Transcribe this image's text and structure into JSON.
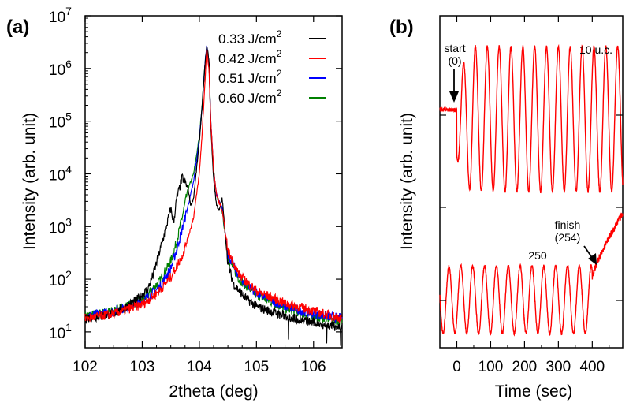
{
  "panel_a_label": "(a)",
  "panel_b_label": "(b)",
  "chart_data": [
    {
      "type": "line",
      "panel": "(a)",
      "xlabel": "2theta (deg)",
      "ylabel": "Intensity (arb. unit)",
      "xlim": [
        102,
        106.5
      ],
      "ylim": [
        5,
        10000000
      ],
      "y_scale": "log",
      "x_ticks": [
        {
          "value": 102,
          "label": "102"
        },
        {
          "value": 103,
          "label": "103"
        },
        {
          "value": 104,
          "label": "104"
        },
        {
          "value": 105,
          "label": "105"
        },
        {
          "value": 106,
          "label": "106"
        }
      ],
      "y_ticks": [
        {
          "value": 10,
          "base": "10",
          "exp": "1"
        },
        {
          "value": 100,
          "base": "10",
          "exp": "2"
        },
        {
          "value": 1000,
          "base": "10",
          "exp": "3"
        },
        {
          "value": 10000,
          "base": "10",
          "exp": "4"
        },
        {
          "value": 100000,
          "base": "10",
          "exp": "5"
        },
        {
          "value": 1000000,
          "base": "10",
          "exp": "6"
        },
        {
          "value": 10000000,
          "base": "10",
          "exp": "7"
        }
      ],
      "legend_position": "top-right",
      "series": [
        {
          "name": "0.33 J/cm",
          "name_sup": "2",
          "color": "#000000",
          "x": [
            102.0,
            102.5,
            102.9,
            103.1,
            103.2,
            103.3,
            103.4,
            103.5,
            103.55,
            103.6,
            103.7,
            103.8,
            103.85,
            103.9,
            104.0,
            104.05,
            104.1,
            104.13,
            104.17,
            104.2,
            104.25,
            104.3,
            104.35,
            104.4,
            104.45,
            104.5,
            104.6,
            104.8,
            105.0,
            105.5,
            106.0,
            106.5
          ],
          "y": [
            18,
            22,
            40,
            65,
            130,
            320,
            800,
            2200,
            1200,
            3200,
            8500,
            5500,
            2500,
            3500,
            40000,
            200000,
            1200000,
            2600000,
            1500000,
            80000,
            8000,
            2600,
            2000,
            3500,
            800,
            200,
            80,
            45,
            30,
            20,
            15,
            12
          ]
        },
        {
          "name": "0.42 J/cm",
          "name_sup": "2",
          "color": "#ff0000",
          "x": [
            102.0,
            102.5,
            103.0,
            103.3,
            103.5,
            103.7,
            103.8,
            103.9,
            104.0,
            104.05,
            104.1,
            104.13,
            104.17,
            104.2,
            104.25,
            104.3,
            104.4,
            104.5,
            104.7,
            105.0,
            105.5,
            106.0,
            106.5
          ],
          "y": [
            18,
            22,
            33,
            60,
            110,
            280,
            600,
            1500,
            10000,
            60000,
            600000,
            2300000,
            900000,
            100000,
            12000,
            4000,
            2000,
            350,
            120,
            60,
            35,
            25,
            18
          ]
        },
        {
          "name": "0.51 J/cm",
          "name_sup": "2",
          "color": "#0000ff",
          "x": [
            102.0,
            102.5,
            103.0,
            103.3,
            103.5,
            103.6,
            103.7,
            103.8,
            103.9,
            104.0,
            104.05,
            104.1,
            104.13,
            104.17,
            104.2,
            104.25,
            104.3,
            104.4,
            104.5,
            104.7,
            105.0,
            105.5,
            106.0,
            106.5
          ],
          "y": [
            20,
            24,
            38,
            70,
            160,
            350,
            900,
            2400,
            7000,
            45000,
            200000,
            1300000,
            2800000,
            1200000,
            100000,
            12000,
            4000,
            2200,
            300,
            110,
            55,
            30,
            22,
            18
          ]
        },
        {
          "name": "0.60 J/cm",
          "name_sup": "2",
          "color": "#008000",
          "x": [
            102.0,
            102.5,
            103.0,
            103.3,
            103.5,
            103.6,
            103.7,
            103.8,
            103.9,
            104.0,
            104.05,
            104.1,
            104.13,
            104.17,
            104.2,
            104.25,
            104.3,
            104.4,
            104.5,
            104.7,
            105.0,
            105.5,
            106.0,
            106.5
          ],
          "y": [
            20,
            25,
            40,
            90,
            220,
            500,
            1500,
            5000,
            10000,
            50000,
            220000,
            1300000,
            2500000,
            1200000,
            100000,
            12000,
            4000,
            2000,
            250,
            100,
            50,
            28,
            20,
            16
          ]
        }
      ]
    },
    {
      "type": "line",
      "panel": "(b)",
      "xlabel": "Time (sec)",
      "ylabel": "Intensity (arb. unit)",
      "xlim": [
        -50,
        490
      ],
      "x_ticks": [
        {
          "value": 0,
          "label": "0"
        },
        {
          "value": 100,
          "label": "100"
        },
        {
          "value": 200,
          "label": "200"
        },
        {
          "value": 300,
          "label": "300"
        },
        {
          "value": 400,
          "label": "400"
        }
      ],
      "annotations": {
        "start_line1": "start",
        "start_line2": "(0)",
        "top_end": "10 u.c.",
        "bottom_mid": "250",
        "finish_line1": "finish",
        "finish_line2": "(254)"
      },
      "series": [
        {
          "name": "",
          "color": "#ff0000",
          "top_trace": {
            "baseline_until_sec": 0,
            "oscillation_period_sec": 35,
            "first_max_sec": 20,
            "n_visible_maxima": 13,
            "shape": "oscillating intensity with flat baseline before start"
          },
          "bottom_trace": {
            "oscillation_period_sec": 35,
            "oscillation_start_sec": -50,
            "oscillation_end_sec": 400,
            "recovery_after_sec": 400,
            "shape": "oscillations then rising recovery after finish"
          }
        }
      ]
    }
  ]
}
